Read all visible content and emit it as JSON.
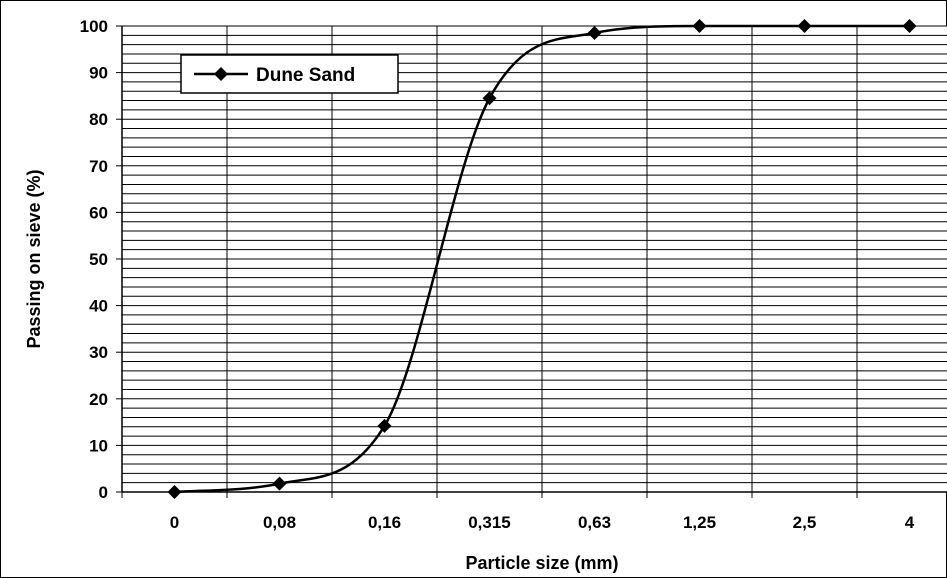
{
  "chart_data": {
    "type": "line",
    "title": "",
    "xlabel": "Particle size (mm)",
    "ylabel": "Passing on sieve (%)",
    "categories": [
      "0",
      "0,08",
      "0,16",
      "0,315",
      "0,63",
      "1,25",
      "2,5",
      "4"
    ],
    "ylim": [
      0,
      100
    ],
    "yticks": [
      0,
      10,
      20,
      30,
      40,
      50,
      60,
      70,
      80,
      90,
      100
    ],
    "y_minor_step": 2,
    "grid": true,
    "legend_position": "top-left",
    "series": [
      {
        "name": "Dune Sand",
        "color": "#000000",
        "marker": "diamond",
        "values": [
          0,
          1.8,
          14.2,
          84.5,
          98.5,
          100,
          100,
          100
        ]
      }
    ]
  }
}
